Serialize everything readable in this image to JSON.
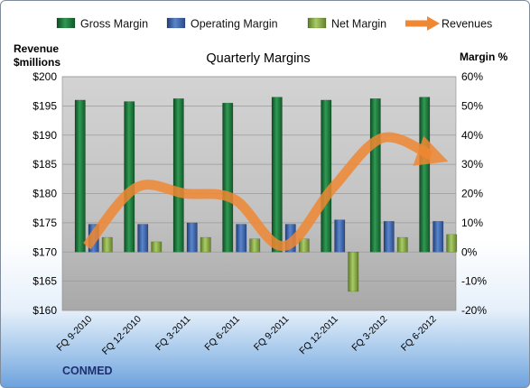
{
  "chart_data": {
    "type": "bar",
    "title": "Quarterly Margins",
    "brand": "CONMED",
    "categories": [
      "FQ 9-2010",
      "FQ 12-2010",
      "FQ 3-2011",
      "FQ 6-2011",
      "FQ 9-2011",
      "FQ 12-2011",
      "FQ 3-2012",
      "FQ 6-2012"
    ],
    "left_axis": {
      "title_line1": "Revenue",
      "title_line2": "$millions",
      "min": 160,
      "max": 200,
      "step": 5,
      "format": "$"
    },
    "right_axis": {
      "title": "Margin %",
      "min": -20,
      "max": 60,
      "step": 10,
      "format": "%"
    },
    "series": [
      {
        "name": "Gross Margin",
        "axis": "right",
        "kind": "bar",
        "color": "#1f7a3c",
        "values": [
          52,
          51.5,
          52.5,
          51,
          53,
          52,
          52.5,
          53
        ]
      },
      {
        "name": "Operating Margin",
        "axis": "right",
        "kind": "bar",
        "color": "#3d6bb3",
        "values": [
          9.5,
          9.5,
          10,
          9.5,
          9.5,
          11,
          10.5,
          10.5
        ]
      },
      {
        "name": "Net Margin",
        "axis": "right",
        "kind": "bar",
        "color": "#8fb84a",
        "values": [
          5,
          3.5,
          5,
          4.5,
          4.5,
          -13.5,
          5,
          6
        ]
      },
      {
        "name": "Revenues",
        "axis": "left",
        "kind": "line",
        "color": "#f08732",
        "values": [
          171,
          181,
          180,
          179,
          171,
          181,
          189.5,
          186.5
        ]
      }
    ],
    "grid": true,
    "legend": "top"
  }
}
